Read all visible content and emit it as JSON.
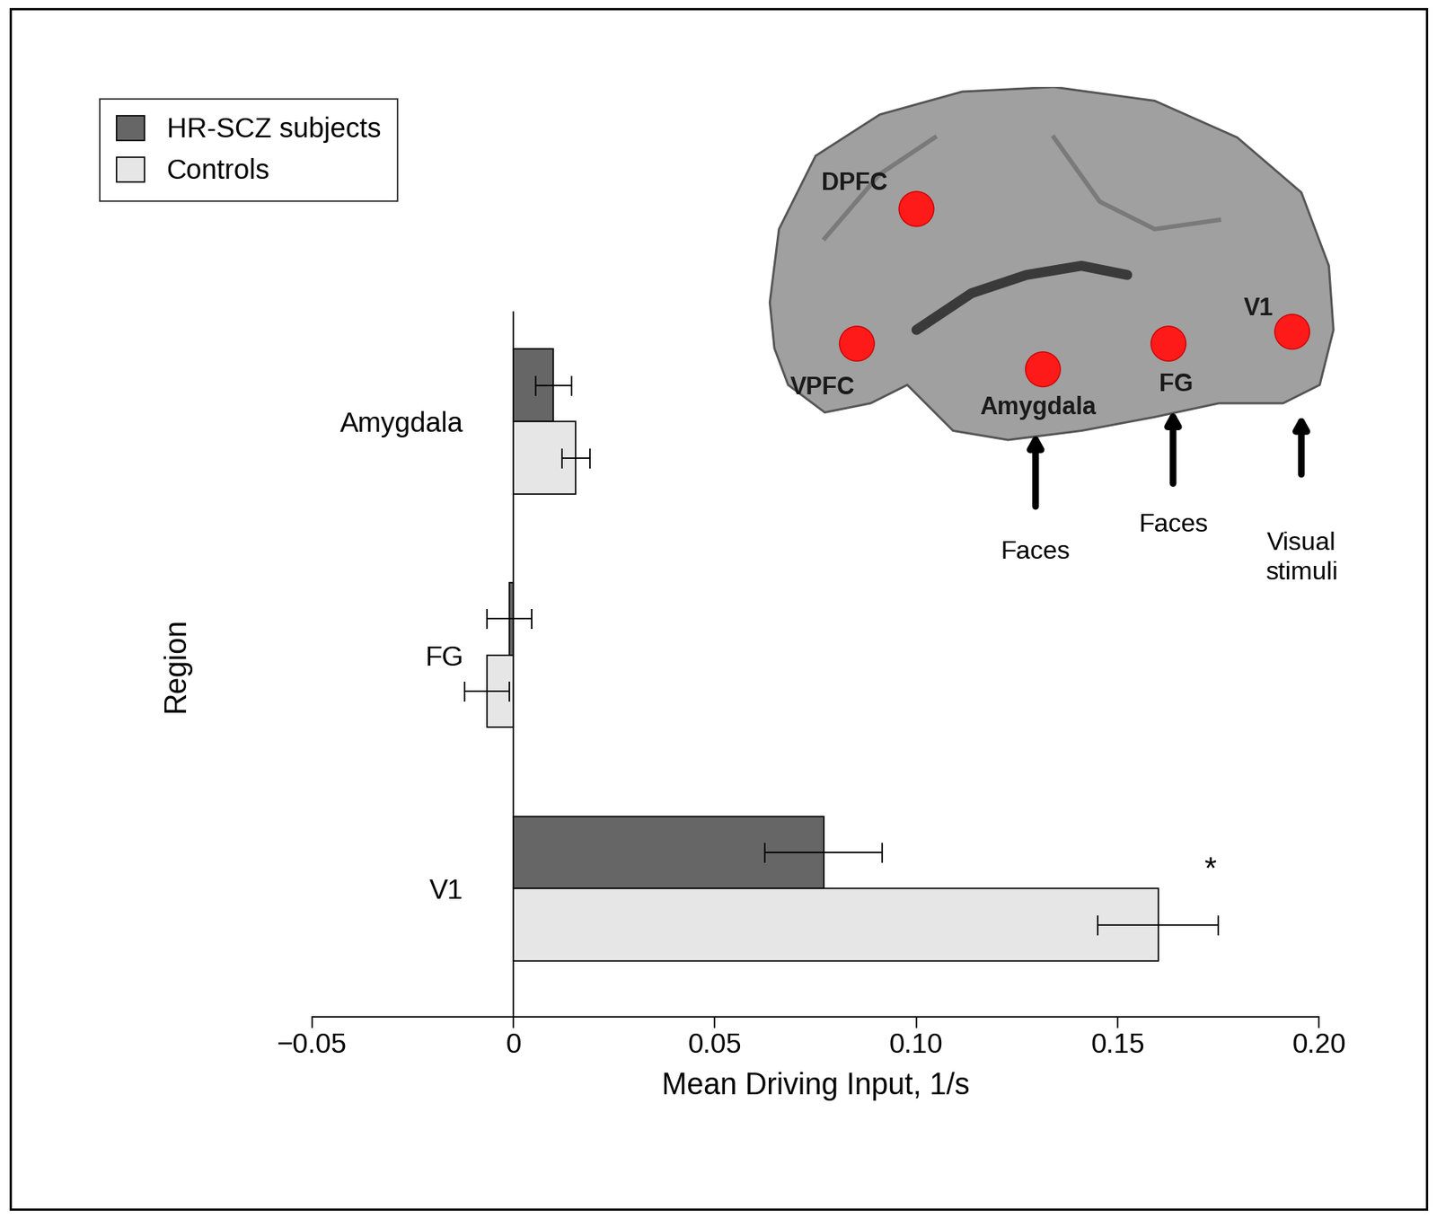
{
  "chart_data": {
    "type": "bar",
    "orientation": "horizontal",
    "x_label": "Mean Driving Input, 1/s",
    "y_label": "Region",
    "categories": [
      "Amygdala",
      "FG",
      "V1"
    ],
    "series": [
      {
        "name": "HR-SCZ subjects",
        "color": "#666666",
        "values": [
          0.01,
          -0.001,
          0.077
        ],
        "errors": [
          0.0045,
          0.0055,
          0.0145
        ]
      },
      {
        "name": "Controls",
        "color": "#e6e6e6",
        "values": [
          0.0155,
          -0.0065,
          0.16
        ],
        "errors": [
          0.0035,
          0.0055,
          0.015
        ]
      }
    ],
    "xlim": [
      -0.05,
      0.2
    ],
    "xticks": [
      {
        "value": -0.05,
        "label": "−0.05"
      },
      0,
      0.05,
      {
        "value": 0.1,
        "label": "0.10"
      },
      0.15,
      {
        "value": 0.2,
        "label": "0.20"
      }
    ],
    "legend": "upper left",
    "grid": false,
    "annotations": [
      {
        "text": "*",
        "category": "V1"
      }
    ],
    "inset": {
      "regions": [
        "DPFC",
        "VPFC",
        "Amygdala",
        "FG",
        "V1"
      ],
      "inputs": [
        {
          "target": "Amygdala",
          "label": "Faces"
        },
        {
          "target": "FG",
          "label": "Faces"
        },
        {
          "target": "V1",
          "label": "Visual\nstimuli"
        }
      ]
    }
  }
}
